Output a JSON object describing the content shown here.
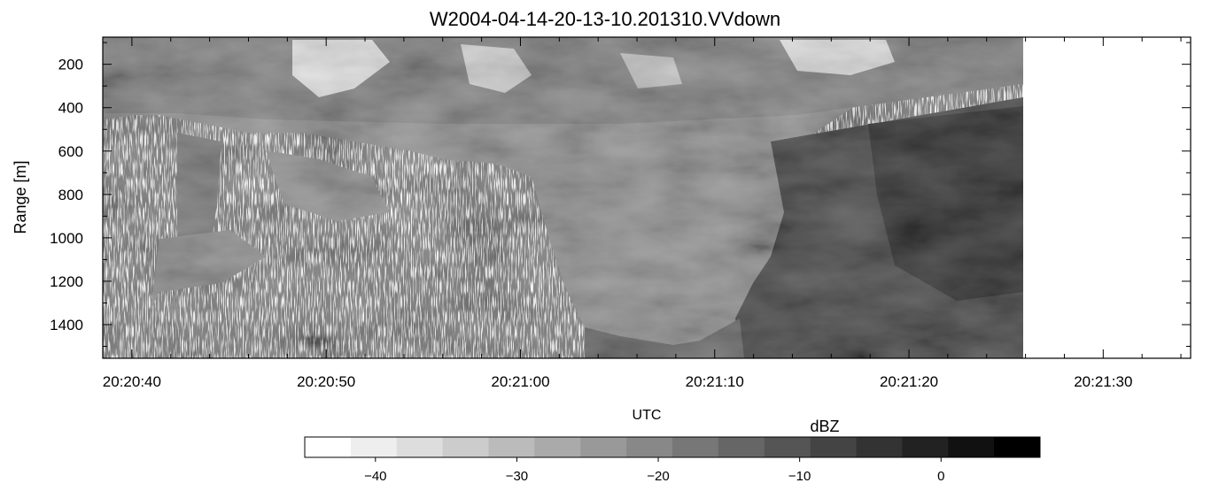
{
  "chart_data": {
    "type": "heatmap",
    "title": "W2004-04-14-20-13-10.201310.VVdown",
    "xlabel": "UTC",
    "ylabel": "Range  [m]",
    "x_ticks": [
      "20:20:40",
      "20:20:50",
      "20:21:00",
      "20:21:10",
      "20:21:20",
      "20:21:30"
    ],
    "y_ticks": [
      200,
      400,
      600,
      800,
      1000,
      1200,
      1400
    ],
    "ylim": [
      1555,
      75
    ],
    "x_range_seconds_after_20_20_40": [
      -1.5,
      54.5
    ],
    "data_extent_seconds_after_20_20_40": [
      -1.5,
      46
    ],
    "colorbar": {
      "label": "dBZ",
      "range": [
        -45,
        7
      ],
      "ticks": [
        -40,
        -30,
        -20,
        -10,
        0
      ],
      "levels": 16,
      "colormap": "white-to-black grayscale"
    }
  }
}
